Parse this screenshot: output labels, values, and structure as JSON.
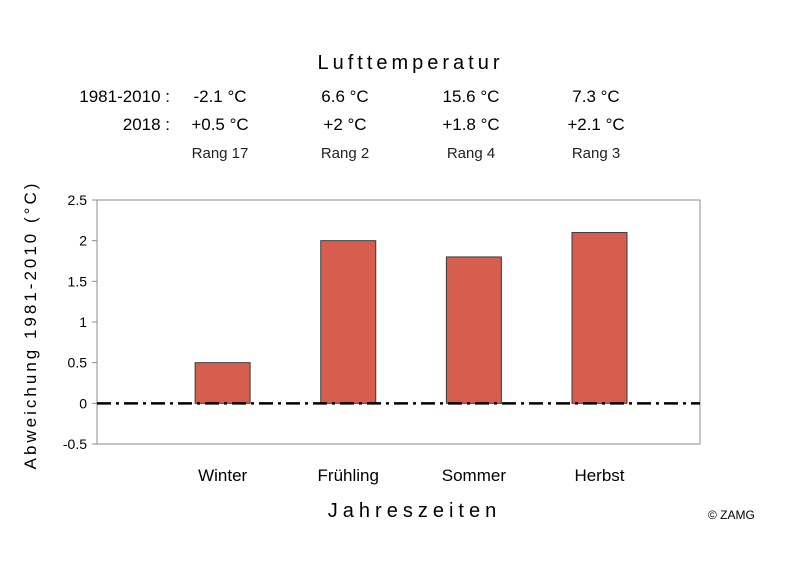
{
  "chart_data": {
    "type": "bar",
    "title": "Lufttemperatur",
    "xlabel": "Jahreszeiten",
    "ylabel": "Abweichung 1981-2010 (°C)",
    "categories": [
      "Winter",
      "Frühling",
      "Sommer",
      "Herbst"
    ],
    "values": [
      0.5,
      2,
      1.8,
      2.1
    ],
    "ylim": [
      -0.5,
      2.5
    ],
    "yticks": [
      "-0.5",
      "0",
      "0.5",
      "1",
      "1.5",
      "2",
      "2.5"
    ],
    "bar_color": "#d65e4e",
    "zero_line": "dash-dot",
    "grid": false
  },
  "table": {
    "row1_label": "1981-2010 :",
    "row2_label": "2018 :",
    "row1": [
      "-2.1 °C",
      "6.6 °C",
      "15.6 °C",
      "7.3 °C"
    ],
    "row2": [
      "+0.5 °C",
      "+2 °C",
      "+1.8 °C",
      "+2.1 °C"
    ],
    "rang": [
      "Rang 17",
      "Rang 2",
      "Rang 4",
      "Rang 3"
    ]
  },
  "copyright": "© ZAMG"
}
